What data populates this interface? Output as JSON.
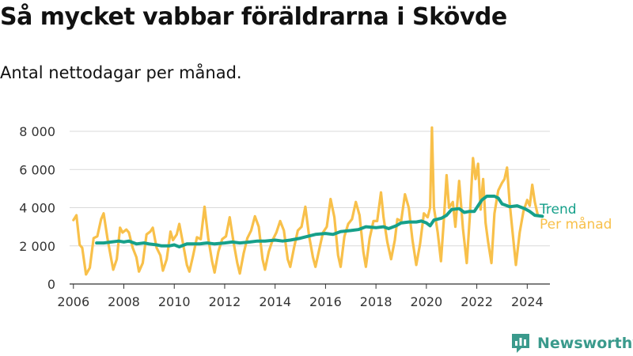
{
  "title": "Så mycket vabbar föräldrarna i Skövde",
  "subtitle": "Antal nettodagar per månad.",
  "brand": {
    "name": "Newsworthy",
    "icon": "newsworthy-logo-icon"
  },
  "colors": {
    "trend": "#16a08a",
    "monthly": "#f8c04a",
    "grid": "#d9d9d9",
    "axis": "#333333",
    "brand": "#3a9a8c"
  },
  "chart_data": {
    "type": "line",
    "x_kind": "year",
    "xlim": [
      2005.85,
      2024.9
    ],
    "ylim": [
      0,
      8500
    ],
    "yticks": [
      0,
      2000,
      4000,
      6000,
      8000
    ],
    "ytick_labels": [
      "0",
      "2 000",
      "4 000",
      "6 000",
      "8 000"
    ],
    "xticks": [
      2006,
      2008,
      2010,
      2012,
      2014,
      2016,
      2018,
      2020,
      2022,
      2024
    ],
    "xtick_labels": [
      "2006",
      "2008",
      "2010",
      "2012",
      "2014",
      "2016",
      "2018",
      "2020",
      "2022",
      "2024"
    ],
    "grid": true,
    "legend": "right",
    "series": [
      {
        "name": "Trend",
        "color": "#16a08a",
        "points": [
          [
            2006.92,
            2150
          ],
          [
            2007.2,
            2150
          ],
          [
            2007.5,
            2200
          ],
          [
            2007.8,
            2250
          ],
          [
            2008.0,
            2200
          ],
          [
            2008.2,
            2250
          ],
          [
            2008.5,
            2100
          ],
          [
            2008.8,
            2150
          ],
          [
            2009.0,
            2100
          ],
          [
            2009.3,
            2050
          ],
          [
            2009.5,
            2000
          ],
          [
            2009.8,
            2000
          ],
          [
            2010.0,
            2050
          ],
          [
            2010.2,
            1950
          ],
          [
            2010.5,
            2100
          ],
          [
            2010.8,
            2100
          ],
          [
            2011.0,
            2100
          ],
          [
            2011.3,
            2150
          ],
          [
            2011.6,
            2100
          ],
          [
            2012.0,
            2150
          ],
          [
            2012.3,
            2200
          ],
          [
            2012.6,
            2150
          ],
          [
            2013.0,
            2200
          ],
          [
            2013.3,
            2250
          ],
          [
            2013.6,
            2250
          ],
          [
            2014.0,
            2300
          ],
          [
            2014.3,
            2250
          ],
          [
            2014.6,
            2300
          ],
          [
            2015.0,
            2400
          ],
          [
            2015.3,
            2500
          ],
          [
            2015.6,
            2600
          ],
          [
            2016.0,
            2650
          ],
          [
            2016.3,
            2600
          ],
          [
            2016.6,
            2750
          ],
          [
            2017.0,
            2800
          ],
          [
            2017.3,
            2850
          ],
          [
            2017.6,
            3000
          ],
          [
            2018.0,
            2950
          ],
          [
            2018.3,
            3000
          ],
          [
            2018.5,
            2900
          ],
          [
            2018.8,
            3050
          ],
          [
            2019.0,
            3200
          ],
          [
            2019.3,
            3250
          ],
          [
            2019.6,
            3250
          ],
          [
            2019.8,
            3300
          ],
          [
            2020.0,
            3200
          ],
          [
            2020.15,
            3050
          ],
          [
            2020.3,
            3350
          ],
          [
            2020.6,
            3450
          ],
          [
            2020.8,
            3600
          ],
          [
            2021.0,
            3900
          ],
          [
            2021.3,
            3950
          ],
          [
            2021.5,
            3750
          ],
          [
            2021.7,
            3800
          ],
          [
            2021.9,
            3800
          ],
          [
            2022.2,
            4400
          ],
          [
            2022.4,
            4600
          ],
          [
            2022.7,
            4600
          ],
          [
            2022.85,
            4500
          ],
          [
            2023.0,
            4200
          ],
          [
            2023.3,
            4050
          ],
          [
            2023.6,
            4100
          ],
          [
            2023.9,
            3950
          ],
          [
            2024.1,
            3800
          ],
          [
            2024.3,
            3600
          ],
          [
            2024.6,
            3550
          ]
        ]
      },
      {
        "name": "Per månad",
        "color": "#f8c04a",
        "points": [
          [
            2006.0,
            3350
          ],
          [
            2006.12,
            3600
          ],
          [
            2006.25,
            2050
          ],
          [
            2006.35,
            1900
          ],
          [
            2006.5,
            500
          ],
          [
            2006.65,
            850
          ],
          [
            2006.8,
            2400
          ],
          [
            2006.95,
            2500
          ],
          [
            2007.1,
            3400
          ],
          [
            2007.2,
            3700
          ],
          [
            2007.35,
            2400
          ],
          [
            2007.5,
            1300
          ],
          [
            2007.58,
            750
          ],
          [
            2007.72,
            1300
          ],
          [
            2007.85,
            2950
          ],
          [
            2007.95,
            2700
          ],
          [
            2008.1,
            2850
          ],
          [
            2008.2,
            2700
          ],
          [
            2008.35,
            1900
          ],
          [
            2008.5,
            1400
          ],
          [
            2008.6,
            650
          ],
          [
            2008.75,
            1100
          ],
          [
            2008.9,
            2600
          ],
          [
            2009.05,
            2750
          ],
          [
            2009.15,
            2950
          ],
          [
            2009.3,
            1900
          ],
          [
            2009.45,
            1500
          ],
          [
            2009.55,
            700
          ],
          [
            2009.7,
            1300
          ],
          [
            2009.85,
            2750
          ],
          [
            2009.95,
            2300
          ],
          [
            2010.1,
            2600
          ],
          [
            2010.2,
            3150
          ],
          [
            2010.35,
            2100
          ],
          [
            2010.5,
            1000
          ],
          [
            2010.6,
            650
          ],
          [
            2010.75,
            1500
          ],
          [
            2010.9,
            2450
          ],
          [
            2011.05,
            2350
          ],
          [
            2011.2,
            4050
          ],
          [
            2011.35,
            2400
          ],
          [
            2011.5,
            1200
          ],
          [
            2011.6,
            600
          ],
          [
            2011.75,
            1700
          ],
          [
            2011.9,
            2350
          ],
          [
            2012.05,
            2500
          ],
          [
            2012.2,
            3500
          ],
          [
            2012.35,
            2200
          ],
          [
            2012.5,
            1100
          ],
          [
            2012.6,
            550
          ],
          [
            2012.75,
            1600
          ],
          [
            2012.9,
            2400
          ],
          [
            2013.05,
            2800
          ],
          [
            2013.2,
            3550
          ],
          [
            2013.35,
            3000
          ],
          [
            2013.5,
            1300
          ],
          [
            2013.6,
            750
          ],
          [
            2013.75,
            1700
          ],
          [
            2013.9,
            2300
          ],
          [
            2014.05,
            2700
          ],
          [
            2014.2,
            3300
          ],
          [
            2014.35,
            2800
          ],
          [
            2014.5,
            1300
          ],
          [
            2014.6,
            900
          ],
          [
            2014.75,
            1900
          ],
          [
            2014.9,
            2800
          ],
          [
            2015.05,
            3000
          ],
          [
            2015.2,
            4050
          ],
          [
            2015.35,
            2500
          ],
          [
            2015.5,
            1400
          ],
          [
            2015.6,
            900
          ],
          [
            2015.75,
            1800
          ],
          [
            2015.9,
            2700
          ],
          [
            2016.05,
            3000
          ],
          [
            2016.2,
            4450
          ],
          [
            2016.35,
            3500
          ],
          [
            2016.5,
            1500
          ],
          [
            2016.6,
            900
          ],
          [
            2016.75,
            2500
          ],
          [
            2016.9,
            3150
          ],
          [
            2017.05,
            3400
          ],
          [
            2017.2,
            4300
          ],
          [
            2017.35,
            3600
          ],
          [
            2017.5,
            1700
          ],
          [
            2017.6,
            900
          ],
          [
            2017.75,
            2400
          ],
          [
            2017.9,
            3300
          ],
          [
            2018.05,
            3300
          ],
          [
            2018.2,
            4800
          ],
          [
            2018.3,
            3500
          ],
          [
            2018.45,
            2200
          ],
          [
            2018.6,
            1300
          ],
          [
            2018.75,
            2300
          ],
          [
            2018.85,
            3400
          ],
          [
            2019.0,
            3300
          ],
          [
            2019.15,
            4700
          ],
          [
            2019.3,
            4000
          ],
          [
            2019.45,
            2300
          ],
          [
            2019.6,
            1000
          ],
          [
            2019.75,
            2100
          ],
          [
            2019.9,
            3700
          ],
          [
            2020.05,
            3500
          ],
          [
            2020.15,
            4000
          ],
          [
            2020.22,
            8200
          ],
          [
            2020.3,
            4000
          ],
          [
            2020.45,
            2700
          ],
          [
            2020.58,
            1200
          ],
          [
            2020.7,
            3500
          ],
          [
            2020.8,
            5700
          ],
          [
            2020.9,
            4000
          ],
          [
            2021.05,
            4300
          ],
          [
            2021.15,
            3000
          ],
          [
            2021.3,
            5400
          ],
          [
            2021.45,
            2900
          ],
          [
            2021.6,
            1100
          ],
          [
            2021.72,
            3500
          ],
          [
            2021.85,
            6600
          ],
          [
            2021.95,
            5500
          ],
          [
            2022.05,
            6300
          ],
          [
            2022.15,
            3900
          ],
          [
            2022.25,
            5500
          ],
          [
            2022.35,
            3200
          ],
          [
            2022.45,
            2200
          ],
          [
            2022.58,
            1100
          ],
          [
            2022.7,
            3700
          ],
          [
            2022.85,
            4900
          ],
          [
            2023.0,
            5300
          ],
          [
            2023.1,
            5500
          ],
          [
            2023.2,
            6100
          ],
          [
            2023.3,
            4300
          ],
          [
            2023.45,
            2300
          ],
          [
            2023.55,
            1000
          ],
          [
            2023.7,
            2700
          ],
          [
            2023.85,
            3800
          ],
          [
            2024.0,
            4400
          ],
          [
            2024.1,
            4100
          ],
          [
            2024.2,
            5200
          ],
          [
            2024.3,
            4300
          ],
          [
            2024.42,
            3600
          ]
        ]
      }
    ]
  }
}
